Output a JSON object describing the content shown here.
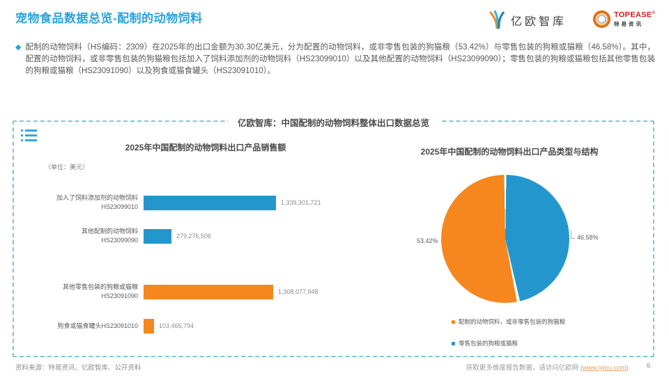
{
  "header": {
    "title": "宠物食品数据总览-配制的动物饲料",
    "logos": {
      "eo_text": "亿欧智库",
      "topease_wordmark": "TOPEASE",
      "topease_reg": "®",
      "topease_subtext": "特易资讯"
    }
  },
  "intro": {
    "bullet": "◆",
    "text": "配制的动物饲料（HS编码：2309）在2025年的出口金额为30.30亿美元，分为配置的动物饲料，或非零售包装的狗猫粮（53.42%）与零售包装的狗粮或猫粮（46.58%）。其中，配置的动物饲料，或非零售包装的狗猫粮包括加入了饲料添加剂的动物饲料（HS23099010）以及其他配置的动物饲料（HS23099090）；零售包装的狗粮或猫粮包括其他零售包装的狗粮或猫粮（HS23091090）以及狗食或猫食罐头（HS23091010）。"
  },
  "panel": {
    "title": "亿欧智库：中国配制的动物饲料整体出口数据总览"
  },
  "colors": {
    "accent_blue": "#2AA3DB",
    "bar_pie_blue": "#2496CE",
    "bar_pie_orange": "#F5871E",
    "panel_border": "#7FC4E1"
  },
  "chart_data": [
    {
      "type": "bar",
      "orientation": "horizontal",
      "title": "2025年中国配制的动物饲料出口产品销售额",
      "unit_label": "（单位：美元）",
      "categories": [
        "加入了饲料添加剂的动物饲料 HS23099010",
        "其他配制的动物饲料 HS23099090",
        "其他零售包装的狗粮或猫粮 HS23091090",
        "狗食或猫食罐头HS23091010"
      ],
      "values": [
        1339301721,
        279276506,
        1308077948,
        103465794
      ],
      "value_labels": [
        "1,339,301,721",
        "279,276,506",
        "1,308,077,948",
        "103,465,794"
      ],
      "bar_colors": [
        "#2496CE",
        "#2496CE",
        "#F5871E",
        "#F5871E"
      ],
      "xlim": [
        0,
        1339301721
      ],
      "rows": [
        {
          "line1": "加入了饲料添加剂的动物饲料",
          "line2": "HS23099010",
          "value_label": "1,339,301,721"
        },
        {
          "line1": "其他配制的动物饲料",
          "line2": "HS23099090",
          "value_label": "279,276,506"
        },
        {
          "line1": "其他零售包装的狗粮或猫粮",
          "line2": "HS23091090",
          "value_label": "1,308,077,948"
        },
        {
          "line1": "狗食或猫食罐头HS23091010",
          "line2": "",
          "value_label": "103,465,794"
        }
      ]
    },
    {
      "type": "pie",
      "title": "2025年中国配制的动物饲料出口产品类型与结构",
      "start_angle_deg": 0,
      "direction": "clockwise",
      "slices": [
        {
          "label": "零售包装的狗粮或猫粮",
          "value_pct": 46.58,
          "pct_label": "46.58%",
          "color": "#2496CE"
        },
        {
          "label": "配制的动物饲料，或非零售包装的狗猫粮",
          "value_pct": 53.42,
          "pct_label": "53.42%",
          "color": "#F5871E"
        }
      ],
      "legend": [
        {
          "label": "配制的动物饲料，或非零售包装的狗猫粮",
          "color": "#F5871E"
        },
        {
          "label": "零售包装的狗粮或猫粮",
          "color": "#2496CE"
        }
      ]
    }
  ],
  "footer": {
    "source": "资料来源：特易资讯、亿欧智库、公开资料",
    "right_prefix": "获取更多维度报告数据，请访问亿欧网 (",
    "link": "www.iyiou.com",
    "right_suffix": ")",
    "page_number": "6"
  }
}
